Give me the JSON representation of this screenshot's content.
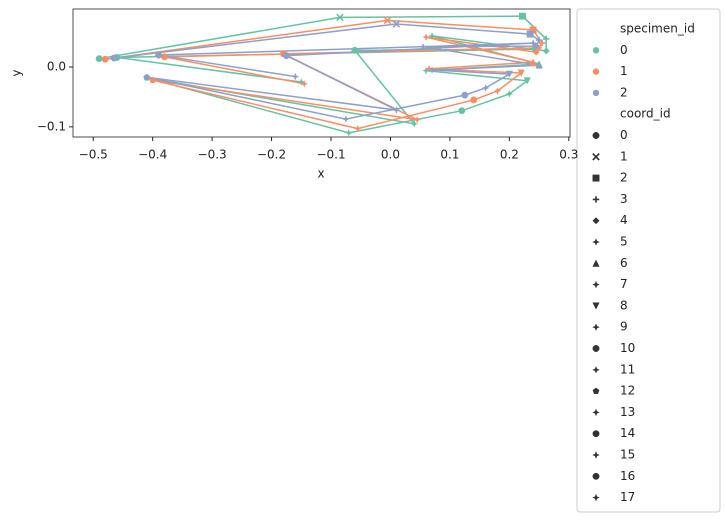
{
  "chart_data": {
    "type": "line",
    "x_label": "x",
    "y_label": "y",
    "xlim": [
      -0.534,
      0.302
    ],
    "ylim": [
      -0.117,
      0.097
    ],
    "xticks": [
      {
        "value": -0.5,
        "label": "−0.5"
      },
      {
        "value": -0.4,
        "label": "−0.4"
      },
      {
        "value": -0.3,
        "label": "−0.3"
      },
      {
        "value": -0.2,
        "label": "−0.2"
      },
      {
        "value": -0.1,
        "label": "−0.1"
      },
      {
        "value": 0,
        "label": "0.0"
      },
      0.1,
      0.2,
      0.3
    ],
    "yticks": [
      {
        "value": -0.1,
        "label": "−0.1"
      },
      {
        "value": 0,
        "label": "0.0"
      }
    ],
    "legend_title": "specimen_id",
    "style_title": "coord_id",
    "style_values": [
      "0",
      "1",
      "2",
      "3",
      "4",
      "5",
      "6",
      "7",
      "8",
      "9",
      "10",
      "11",
      "12",
      "13",
      "14",
      "15",
      "16",
      "17"
    ],
    "series": [
      {
        "name": "0",
        "color": "#66c2a5",
        "x": [
          -0.49,
          -0.085,
          0.222,
          0.262,
          0.262,
          0.07,
          0.25,
          0.06,
          0.23,
          0.2,
          0.12,
          -0.07,
          -0.41,
          0.04,
          -0.06,
          0.24,
          -0.46,
          -0.15
        ],
        "y": [
          0.014,
          0.083,
          0.085,
          0.047,
          0.027,
          0.052,
          0.005,
          -0.006,
          -0.023,
          -0.045,
          -0.073,
          -0.11,
          -0.018,
          -0.095,
          0.028,
          0.03,
          0.016,
          -0.025
        ]
      },
      {
        "name": "1",
        "color": "#fc8d62",
        "x": [
          -0.48,
          -0.005,
          0.24,
          0.255,
          0.245,
          0.06,
          0.24,
          0.065,
          0.22,
          0.18,
          0.14,
          -0.055,
          -0.4,
          0.045,
          -0.18,
          0.25,
          -0.38,
          -0.145
        ],
        "y": [
          0.013,
          0.078,
          0.062,
          0.04,
          0.025,
          0.05,
          0.008,
          -0.003,
          -0.01,
          -0.04,
          -0.055,
          -0.103,
          -0.022,
          -0.088,
          0.022,
          0.032,
          0.017,
          -0.028
        ]
      },
      {
        "name": "2",
        "color": "#8da0cb",
        "x": [
          -0.465,
          0.01,
          0.235,
          0.25,
          0.245,
          0.055,
          0.25,
          0.07,
          0.2,
          0.16,
          0.125,
          -0.075,
          -0.41,
          0.01,
          -0.175,
          0.24,
          -0.39,
          -0.16
        ],
        "y": [
          0.015,
          0.072,
          0.055,
          0.045,
          0.035,
          0.034,
          0.003,
          -0.005,
          -0.012,
          -0.035,
          -0.047,
          -0.087,
          -0.017,
          -0.072,
          0.019,
          0.04,
          0.02,
          -0.016
        ]
      }
    ]
  }
}
